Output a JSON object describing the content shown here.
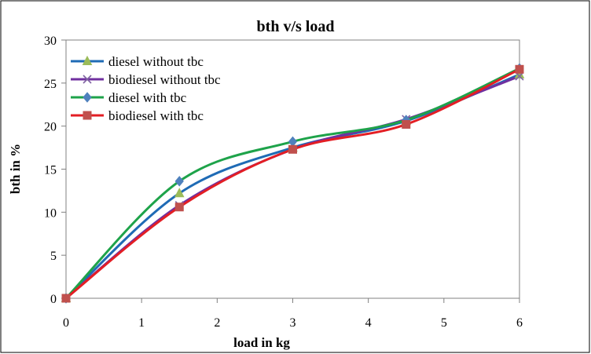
{
  "chart_data": {
    "type": "line",
    "title": "bth v/s load",
    "xlabel": "load in kg",
    "ylabel": "bth in %",
    "xlim": [
      0,
      6
    ],
    "ylim": [
      0,
      30
    ],
    "xticks": [
      0,
      1,
      2,
      3,
      4,
      5,
      6
    ],
    "yticks": [
      0,
      5,
      10,
      15,
      20,
      25,
      30
    ],
    "grid": false,
    "legend_position": "top-left",
    "series": [
      {
        "name": "diesel without tbc",
        "color": "#1F6BB5",
        "marker": "triangle",
        "marker_color": "#9BBB59",
        "x": [
          0,
          1.5,
          3,
          4.5,
          6
        ],
        "y": [
          0,
          12.2,
          17.5,
          20.6,
          26.0
        ]
      },
      {
        "name": "biodiesel without tbc",
        "color": "#7030A0",
        "marker": "x",
        "marker_color": "#8064A2",
        "x": [
          0,
          1.5,
          3,
          4.5,
          6
        ],
        "y": [
          0,
          10.8,
          17.3,
          20.8,
          25.8
        ]
      },
      {
        "name": "diesel with tbc",
        "color": "#1EA34A",
        "marker": "diamond",
        "marker_color": "#4F81BD",
        "x": [
          0,
          1.5,
          3,
          4.5,
          6
        ],
        "y": [
          0,
          13.6,
          18.2,
          20.7,
          26.7
        ]
      },
      {
        "name": "biodiesel with tbc",
        "color": "#E31E24",
        "marker": "square",
        "marker_color": "#C0504D",
        "x": [
          0,
          1.5,
          3,
          4.5,
          6
        ],
        "y": [
          0,
          10.6,
          17.3,
          20.2,
          26.6
        ]
      }
    ]
  }
}
